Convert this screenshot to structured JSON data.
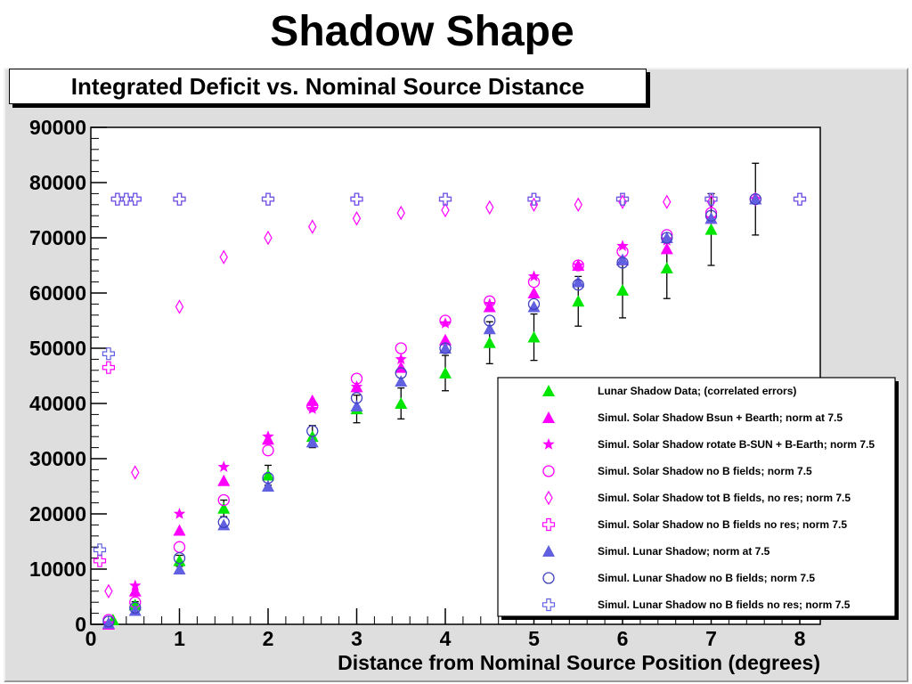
{
  "page": {
    "title": "Shadow Shape"
  },
  "chart_data": {
    "type": "scatter",
    "title": "Integrated Deficit vs. Nominal Source Distance",
    "xlabel": "Distance from Nominal Source Position (degrees)",
    "ylabel": "",
    "xlim": [
      0,
      8.2
    ],
    "ylim": [
      0,
      90000
    ],
    "x_ticks": [
      "0",
      "1",
      "2",
      "3",
      "4",
      "5",
      "6",
      "7",
      "8"
    ],
    "y_ticks": [
      "0",
      "10000",
      "20000",
      "30000",
      "40000",
      "50000",
      "60000",
      "70000",
      "80000",
      "90000"
    ],
    "grid": false,
    "legend_position": "bottom-right",
    "series": [
      {
        "name": "Lunar Shadow Data; (correlated errors)",
        "marker": "triangle",
        "color": "#00e600",
        "points": [
          [
            0.25,
            800,
            0
          ],
          [
            0.5,
            3500,
            600
          ],
          [
            1,
            11500,
            1000
          ],
          [
            1.5,
            21000,
            1500
          ],
          [
            2,
            27000,
            1800
          ],
          [
            2.5,
            34000,
            2000
          ],
          [
            3,
            39000,
            2500
          ],
          [
            3.5,
            40000,
            2800
          ],
          [
            4,
            45500,
            3200
          ],
          [
            4.5,
            51000,
            3800
          ],
          [
            5,
            52000,
            4200
          ],
          [
            5.5,
            58500,
            4500
          ],
          [
            6,
            60500,
            5000
          ],
          [
            6.5,
            64500,
            5500
          ],
          [
            7,
            71500,
            6500
          ],
          [
            7.5,
            77000,
            6500
          ]
        ]
      },
      {
        "name": "Simul. Solar Shadow Bsun + Bearth; norm at 7.5",
        "marker": "triangle",
        "color": "#ff00ff",
        "points": [
          [
            0.2,
            0
          ],
          [
            0.5,
            6000
          ],
          [
            1,
            17000
          ],
          [
            1.5,
            26000
          ],
          [
            2,
            33500
          ],
          [
            2.5,
            40500
          ],
          [
            3,
            43000
          ],
          [
            3.5,
            46500
          ],
          [
            4,
            51500
          ],
          [
            4.5,
            57500
          ],
          [
            5,
            60000
          ],
          [
            5.5,
            65000
          ],
          [
            6,
            66000
          ],
          [
            6.5,
            68000
          ],
          [
            7,
            73500
          ],
          [
            7.5,
            77000
          ]
        ]
      },
      {
        "name": "Simul. Solar Shadow rotate B-SUN + B-Earth; norm 7.5",
        "marker": "star",
        "color": "#ff00ff",
        "points": [
          [
            0.2,
            200
          ],
          [
            0.5,
            7000
          ],
          [
            1,
            20000
          ],
          [
            1.5,
            28500
          ],
          [
            2,
            34000
          ],
          [
            2.5,
            39000
          ],
          [
            3,
            43000
          ],
          [
            3.5,
            48000
          ],
          [
            4,
            54500
          ],
          [
            4.5,
            58000
          ],
          [
            5,
            63000
          ],
          [
            5.5,
            65000
          ],
          [
            6,
            68500
          ],
          [
            6.5,
            69500
          ],
          [
            7,
            73500
          ],
          [
            7.5,
            77000
          ]
        ]
      },
      {
        "name": "Simul. Solar Shadow no B fields; norm 7.5",
        "marker": "circle",
        "color": "#ff00ff",
        "points": [
          [
            0.2,
            800
          ],
          [
            0.5,
            4000
          ],
          [
            1,
            14000
          ],
          [
            1.5,
            22500
          ],
          [
            2,
            31500
          ],
          [
            2.5,
            39500
          ],
          [
            3,
            44500
          ],
          [
            3.5,
            50000
          ],
          [
            4,
            55000
          ],
          [
            4.5,
            58500
          ],
          [
            5,
            62000
          ],
          [
            5.5,
            65000
          ],
          [
            6,
            67500
          ],
          [
            6.5,
            70500
          ],
          [
            7,
            74500
          ],
          [
            7.5,
            77000
          ]
        ]
      },
      {
        "name": "Simul. Solar Shadow tot B fields, no res; norm 7.5",
        "marker": "diamond",
        "color": "#ff00ff",
        "points": [
          [
            0.2,
            6000
          ],
          [
            0.5,
            27500
          ],
          [
            1,
            57500
          ],
          [
            1.5,
            66500
          ],
          [
            2,
            70000
          ],
          [
            2.5,
            72000
          ],
          [
            3,
            73500
          ],
          [
            3.5,
            74500
          ],
          [
            4,
            75000
          ],
          [
            4.5,
            75500
          ],
          [
            5,
            76000
          ],
          [
            5.5,
            76000
          ],
          [
            6,
            76500
          ],
          [
            6.5,
            76500
          ],
          [
            7,
            76500
          ],
          [
            7.5,
            77000
          ]
        ]
      },
      {
        "name": "Simul. Solar Shadow no B fields no res; norm 7.5",
        "marker": "cross",
        "color": "#ff00ff",
        "points": [
          [
            0.1,
            11500
          ],
          [
            0.2,
            46500
          ],
          [
            0.3,
            77000
          ],
          [
            0.4,
            77000
          ],
          [
            0.5,
            77000
          ],
          [
            1,
            77000
          ],
          [
            2,
            77000
          ],
          [
            3,
            77000
          ],
          [
            4,
            77000
          ],
          [
            5,
            77000
          ],
          [
            6,
            77000
          ],
          [
            7,
            77000
          ],
          [
            8,
            77000
          ]
        ]
      },
      {
        "name": "Simul. Lunar Shadow; norm at 7.5",
        "marker": "triangle",
        "color": "#6060e0",
        "points": [
          [
            0.2,
            200
          ],
          [
            0.5,
            2500
          ],
          [
            1,
            10000
          ],
          [
            1.5,
            18000
          ],
          [
            2,
            25000
          ],
          [
            2.5,
            33000
          ],
          [
            3,
            39500
          ],
          [
            3.5,
            44000
          ],
          [
            4,
            50000
          ],
          [
            4.5,
            53500
          ],
          [
            5,
            57500
          ],
          [
            5.5,
            62000
          ],
          [
            6,
            66000
          ],
          [
            6.5,
            70000
          ],
          [
            7,
            73500
          ],
          [
            7.5,
            77000
          ]
        ]
      },
      {
        "name": "Simul. Lunar Shadow no B fields; norm 7.5",
        "marker": "circle",
        "color": "#4040c0",
        "points": [
          [
            0.2,
            500
          ],
          [
            0.5,
            3000
          ],
          [
            1,
            12000
          ],
          [
            1.5,
            18500
          ],
          [
            2,
            26500
          ],
          [
            2.5,
            35000
          ],
          [
            3,
            41000
          ],
          [
            3.5,
            45500
          ],
          [
            4,
            50000
          ],
          [
            4.5,
            55000
          ],
          [
            5,
            58000
          ],
          [
            5.5,
            61500
          ],
          [
            6,
            65500
          ],
          [
            6.5,
            70000
          ],
          [
            7,
            74000
          ],
          [
            7.5,
            77000
          ]
        ]
      },
      {
        "name": "Simul. Lunar Shadow no B fields no res; norm 7.5",
        "marker": "cross",
        "color": "#6060e0",
        "points": [
          [
            0.1,
            13500
          ],
          [
            0.2,
            49000
          ],
          [
            0.3,
            77000
          ],
          [
            0.4,
            77000
          ],
          [
            0.5,
            77000
          ],
          [
            1,
            77000
          ],
          [
            2,
            77000
          ],
          [
            3,
            77000
          ],
          [
            4,
            77000
          ],
          [
            5,
            77000
          ],
          [
            6,
            77000
          ],
          [
            7,
            77000
          ],
          [
            8,
            77000
          ]
        ]
      }
    ]
  }
}
